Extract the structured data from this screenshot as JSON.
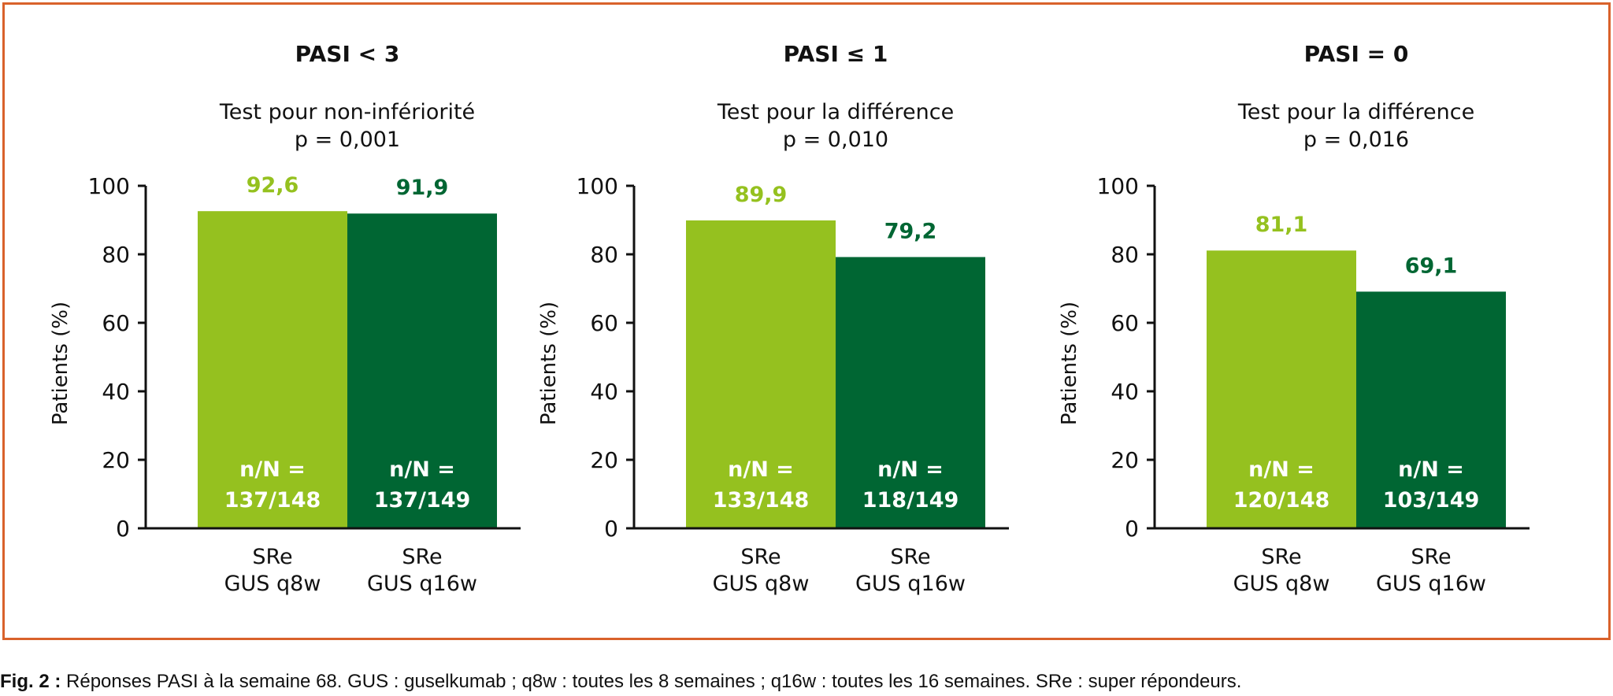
{
  "colors": {
    "border": "#d9622b",
    "q8w": "#95c11f",
    "q16w": "#006633",
    "axis": "#111111"
  },
  "chart_data": [
    {
      "type": "bar",
      "title": "PASI < 3",
      "subtitle": "Test pour non-infériorité",
      "pvalue": "p = 0,001",
      "ylabel": "Patients (%)",
      "ylim": [
        0,
        100
      ],
      "yticks": [
        0,
        20,
        40,
        60,
        80,
        100
      ],
      "categories": [
        "SRe\nGUS q8w",
        "SRe\nGUS q16w"
      ],
      "values": [
        92.6,
        91.9
      ],
      "value_labels": [
        "92,6",
        "91,9"
      ],
      "n_labels": [
        [
          "n/N =",
          "137/148"
        ],
        [
          "n/N =",
          "137/149"
        ]
      ]
    },
    {
      "type": "bar",
      "title": "PASI ≤ 1",
      "subtitle": "Test pour la différence",
      "pvalue": "p = 0,010",
      "ylabel": "Patients (%)",
      "ylim": [
        0,
        100
      ],
      "yticks": [
        0,
        20,
        40,
        60,
        80,
        100
      ],
      "categories": [
        "SRe\nGUS q8w",
        "SRe\nGUS q16w"
      ],
      "values": [
        89.9,
        79.2
      ],
      "value_labels": [
        "89,9",
        "79,2"
      ],
      "n_labels": [
        [
          "n/N =",
          "133/148"
        ],
        [
          "n/N =",
          "118/149"
        ]
      ]
    },
    {
      "type": "bar",
      "title": "PASI = 0",
      "subtitle": "Test pour la différence",
      "pvalue": "p = 0,016",
      "ylabel": "Patients (%)",
      "ylim": [
        0,
        100
      ],
      "yticks": [
        0,
        20,
        40,
        60,
        80,
        100
      ],
      "categories": [
        "SRe\nGUS q8w",
        "SRe\nGUS q16w"
      ],
      "values": [
        81.1,
        69.1
      ],
      "value_labels": [
        "81,1",
        "69,1"
      ],
      "n_labels": [
        [
          "n/N =",
          "120/148"
        ],
        [
          "n/N =",
          "103/149"
        ]
      ]
    }
  ],
  "caption": {
    "label": "Fig. 2 :",
    "text": " Réponses PASI à la semaine 68. GUS : guselkumab ; q8w : toutes les 8 semaines ; q16w : toutes les 16 semaines. SRe : super répondeurs."
  }
}
